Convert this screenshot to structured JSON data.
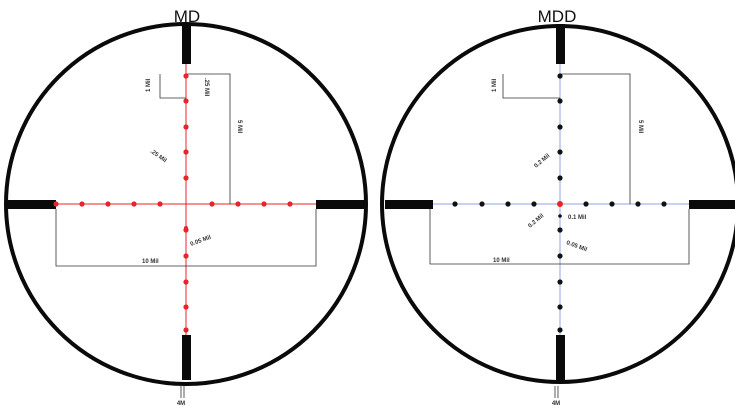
{
  "reticles": [
    {
      "title": "MD",
      "dot_color": "#e8242a",
      "crosshair_color": "#e8242a",
      "labels": {
        "one_mil": "1 Mil",
        "quarter_mil_vertical": ".25 Mil",
        "five_mil": "5 Mil",
        "quarter_mil_diag": ".25 Mil",
        "ten_mil": "10 Mil",
        "small_dot": "0.05 Mil",
        "bottom": "4M"
      }
    },
    {
      "title": "MDD",
      "dot_color": "#111111",
      "crosshair_color": "#8fa6e6",
      "labels": {
        "one_mil": "1 Mil",
        "five_mil": "5 Mil",
        "quarter_mil_diag": "0.2 Mil",
        "center_diag": "0.2 Mil",
        "tenth_mil": "0.1 Mil",
        "ten_mil": "10 Mil",
        "small_dot": "0.05 Mil",
        "bottom": "4M"
      }
    }
  ]
}
